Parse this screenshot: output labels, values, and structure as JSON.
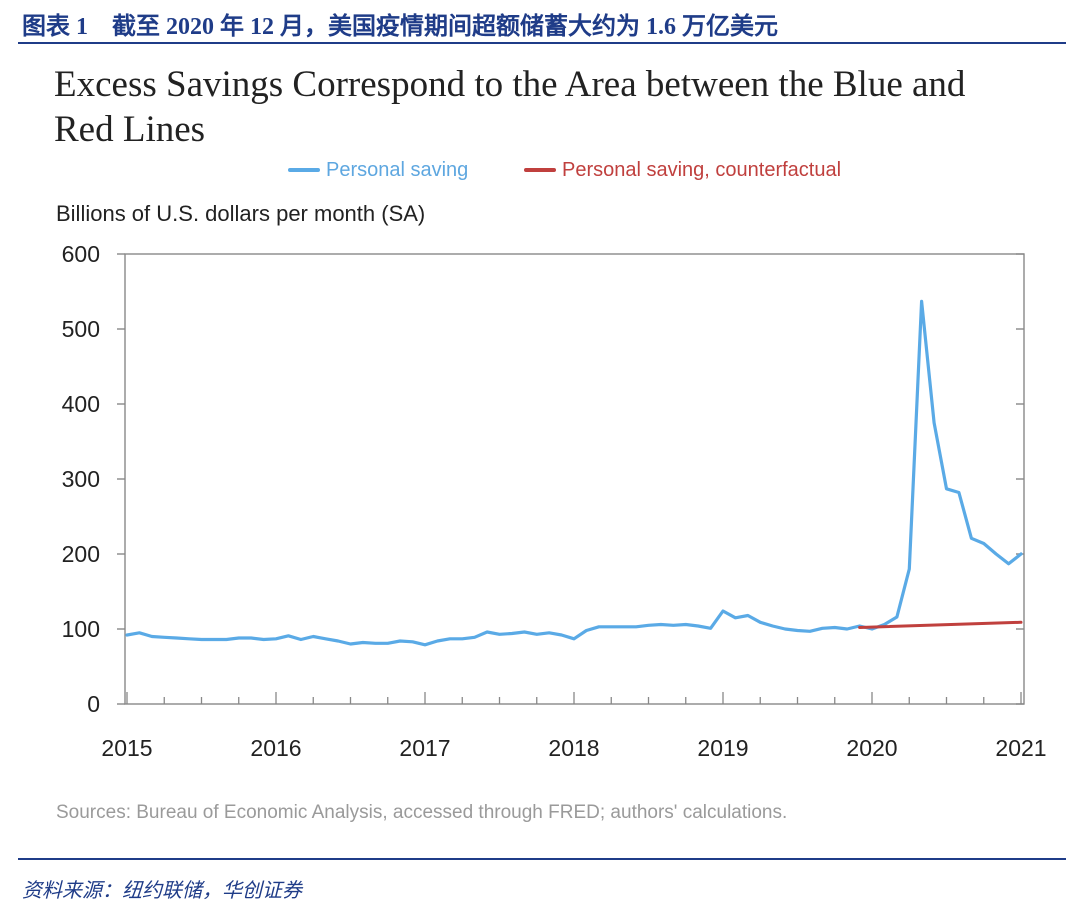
{
  "figure_header": "图表 1　截至 2020 年 12 月，美国疫情期间超额储蓄大约为 1.6 万亿美元",
  "footer_source": "资料来源：纽约联储，华创证券",
  "colors": {
    "accent": "#1f3c88",
    "personal_saving": "#5aaae6",
    "counterfactual": "#c0403e",
    "axis": "#888888"
  },
  "chart_data": {
    "type": "line",
    "title": "Excess Savings Correspond to the Area between the Blue and Red Lines",
    "ylabel": "Billions of U.S. dollars per month (SA)",
    "xlabel": "",
    "source": "Sources: Bureau of Economic Analysis, accessed through FRED; authors' calculations.",
    "ylim": [
      0,
      600
    ],
    "yticks": [
      0,
      100,
      200,
      300,
      400,
      500,
      600
    ],
    "xlim": [
      2015,
      2021
    ],
    "xticks": [
      2015,
      2016,
      2017,
      2018,
      2019,
      2020,
      2021
    ],
    "grid": false,
    "legend_position": "top",
    "series": [
      {
        "name": "Personal saving",
        "color": "#5aaae6",
        "points": [
          [
            2015.0,
            92
          ],
          [
            2015.083,
            95
          ],
          [
            2015.167,
            90
          ],
          [
            2015.25,
            89
          ],
          [
            2015.333,
            88
          ],
          [
            2015.417,
            87
          ],
          [
            2015.5,
            86
          ],
          [
            2015.583,
            86
          ],
          [
            2015.667,
            86
          ],
          [
            2015.75,
            88
          ],
          [
            2015.833,
            88
          ],
          [
            2015.917,
            86
          ],
          [
            2016.0,
            87
          ],
          [
            2016.083,
            91
          ],
          [
            2016.167,
            86
          ],
          [
            2016.25,
            90
          ],
          [
            2016.333,
            87
          ],
          [
            2016.417,
            84
          ],
          [
            2016.5,
            80
          ],
          [
            2016.583,
            82
          ],
          [
            2016.667,
            81
          ],
          [
            2016.75,
            81
          ],
          [
            2016.833,
            84
          ],
          [
            2016.917,
            83
          ],
          [
            2017.0,
            79
          ],
          [
            2017.083,
            84
          ],
          [
            2017.167,
            87
          ],
          [
            2017.25,
            87
          ],
          [
            2017.333,
            89
          ],
          [
            2017.417,
            96
          ],
          [
            2017.5,
            93
          ],
          [
            2017.583,
            94
          ],
          [
            2017.667,
            96
          ],
          [
            2017.75,
            93
          ],
          [
            2017.833,
            95
          ],
          [
            2017.917,
            92
          ],
          [
            2018.0,
            87
          ],
          [
            2018.083,
            98
          ],
          [
            2018.167,
            103
          ],
          [
            2018.25,
            103
          ],
          [
            2018.333,
            103
          ],
          [
            2018.417,
            103
          ],
          [
            2018.5,
            105
          ],
          [
            2018.583,
            106
          ],
          [
            2018.667,
            105
          ],
          [
            2018.75,
            106
          ],
          [
            2018.833,
            104
          ],
          [
            2018.917,
            101
          ],
          [
            2019.0,
            124
          ],
          [
            2019.083,
            115
          ],
          [
            2019.167,
            118
          ],
          [
            2019.25,
            109
          ],
          [
            2019.333,
            104
          ],
          [
            2019.417,
            100
          ],
          [
            2019.5,
            98
          ],
          [
            2019.583,
            97
          ],
          [
            2019.667,
            101
          ],
          [
            2019.75,
            102
          ],
          [
            2019.833,
            100
          ],
          [
            2019.917,
            104
          ],
          [
            2020.0,
            100
          ],
          [
            2020.083,
            106
          ],
          [
            2020.167,
            116
          ],
          [
            2020.25,
            180
          ],
          [
            2020.333,
            537
          ],
          [
            2020.417,
            375
          ],
          [
            2020.5,
            287
          ],
          [
            2020.583,
            282
          ],
          [
            2020.667,
            221
          ],
          [
            2020.75,
            214
          ],
          [
            2020.833,
            200
          ],
          [
            2020.917,
            187
          ],
          [
            2021.0,
            200
          ]
        ]
      },
      {
        "name": "Personal saving, counterfactual",
        "color": "#c0403e",
        "points": [
          [
            2019.917,
            102
          ],
          [
            2021.0,
            109
          ]
        ]
      }
    ]
  }
}
